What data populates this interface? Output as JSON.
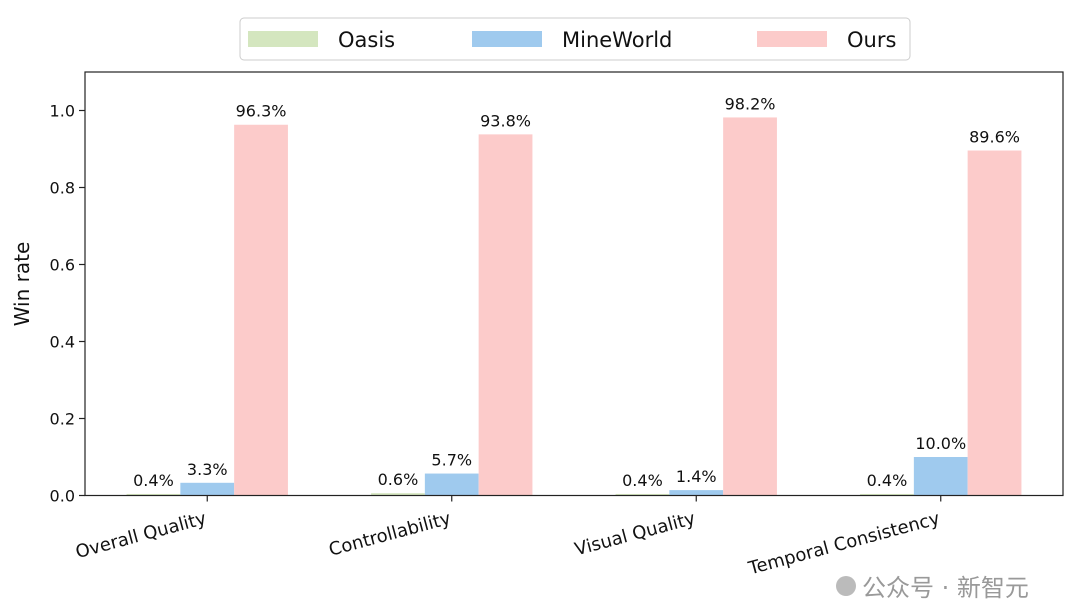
{
  "chart_data": {
    "type": "bar",
    "title": "",
    "xlabel": "",
    "ylabel": "Win rate",
    "ylim": [
      0,
      1.1
    ],
    "yticks": [
      "0.0",
      "0.2",
      "0.4",
      "0.6",
      "0.8",
      "1.0"
    ],
    "categories": [
      "Overall Quality",
      "Controllability",
      "Visual Quality",
      "Temporal Consistency"
    ],
    "series": [
      {
        "name": "Oasis",
        "color": "#d4e6bf",
        "values": [
          0.004,
          0.006,
          0.004,
          0.004
        ],
        "labels": [
          "0.4%",
          "0.6%",
          "0.4%",
          "0.4%"
        ]
      },
      {
        "name": "MineWorld",
        "color": "#9fcaee",
        "values": [
          0.033,
          0.057,
          0.014,
          0.1
        ],
        "labels": [
          "3.3%",
          "5.7%",
          "1.4%",
          "10.0%"
        ]
      },
      {
        "name": "Ours",
        "color": "#fccbca",
        "values": [
          0.963,
          0.938,
          0.982,
          0.896
        ],
        "labels": [
          "96.3%",
          "93.8%",
          "98.2%",
          "89.6%"
        ]
      }
    ],
    "legend": "top-center",
    "grid": false
  },
  "watermark": "公众号 · 新智元"
}
